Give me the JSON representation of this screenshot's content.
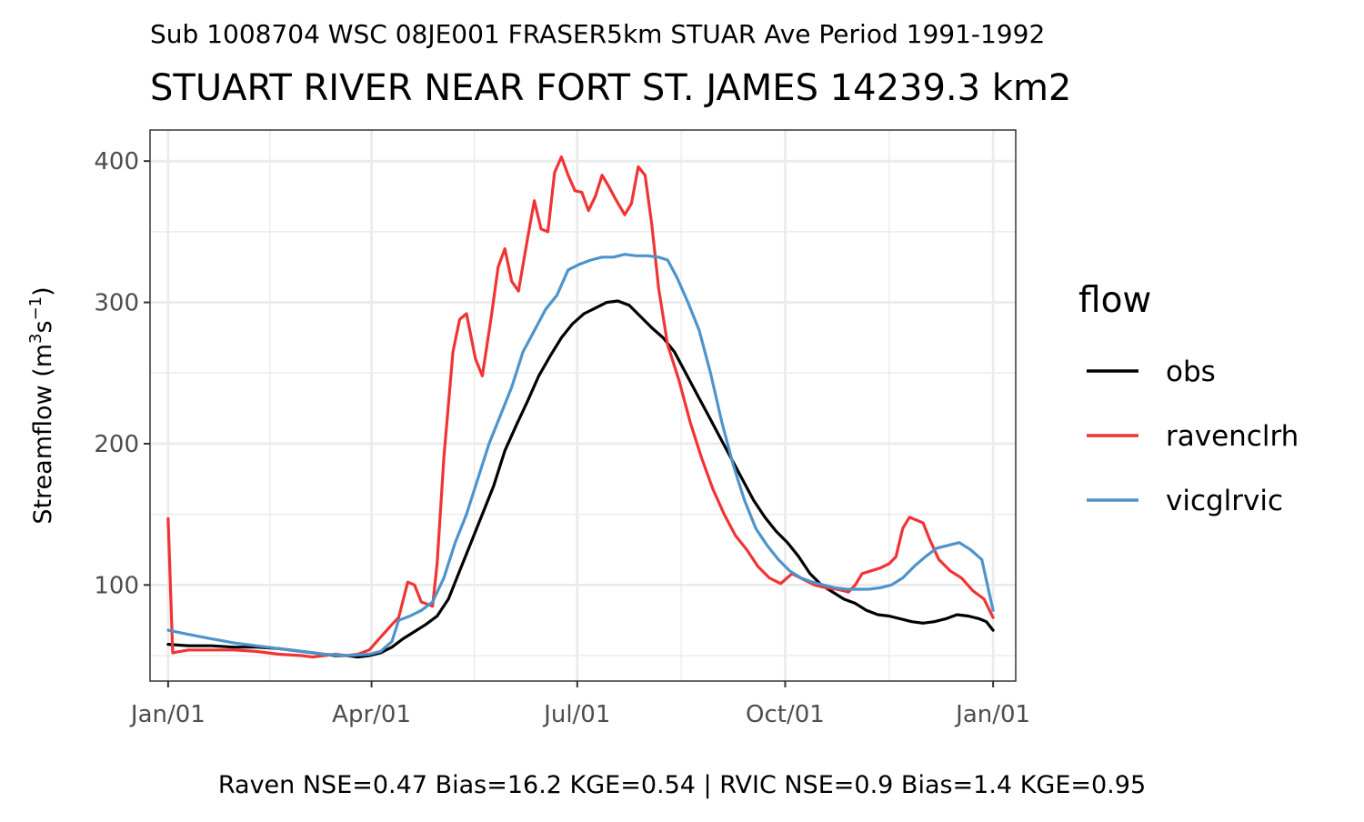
{
  "chart_data": {
    "type": "line",
    "subtitle": "Sub 1008704 WSC 08JE001 FRASER5km STUAR Ave Period 1991-1992",
    "title": "STUART RIVER NEAR FORT ST. JAMES 14239.3 km2",
    "xlabel": "",
    "ylabel": "Streamflow (m3s−1)",
    "ylabel_parts": {
      "prefix": "Streamflow (m",
      "sup1": "3",
      "mid": "s",
      "sup2": "−1",
      "suffix": ")"
    },
    "caption": "Raven NSE=0.47 Bias=16.2 KGE=0.54 | RVIC NSE=0.9 Bias=1.4 KGE=0.95",
    "x_unit": "day of year",
    "x_ticks": [
      {
        "label": "Jan/01",
        "value": 1
      },
      {
        "label": "Apr/01",
        "value": 91
      },
      {
        "label": "Jul/01",
        "value": 182
      },
      {
        "label": "Oct/01",
        "value": 274
      },
      {
        "label": "Jan/01",
        "value": 366
      }
    ],
    "xlim": [
      -7,
      376
    ],
    "y_ticks": [
      100,
      200,
      300,
      400
    ],
    "ylim": [
      32,
      422
    ],
    "grid": true,
    "legend": {
      "title": "flow",
      "position": "right"
    },
    "series": [
      {
        "name": "obs",
        "color": "#000000",
        "points": [
          [
            1,
            58
          ],
          [
            10,
            57
          ],
          [
            20,
            57
          ],
          [
            30,
            56
          ],
          [
            40,
            56
          ],
          [
            50,
            55
          ],
          [
            60,
            53
          ],
          [
            70,
            51
          ],
          [
            75,
            50
          ],
          [
            80,
            50
          ],
          [
            85,
            49
          ],
          [
            90,
            50
          ],
          [
            95,
            52
          ],
          [
            100,
            56
          ],
          [
            105,
            62
          ],
          [
            110,
            67
          ],
          [
            115,
            72
          ],
          [
            120,
            78
          ],
          [
            125,
            90
          ],
          [
            130,
            110
          ],
          [
            135,
            130
          ],
          [
            140,
            150
          ],
          [
            145,
            170
          ],
          [
            150,
            195
          ],
          [
            155,
            213
          ],
          [
            160,
            230
          ],
          [
            165,
            248
          ],
          [
            170,
            262
          ],
          [
            175,
            275
          ],
          [
            180,
            285
          ],
          [
            185,
            292
          ],
          [
            190,
            296
          ],
          [
            195,
            300
          ],
          [
            200,
            301
          ],
          [
            205,
            298
          ],
          [
            210,
            290
          ],
          [
            215,
            282
          ],
          [
            220,
            275
          ],
          [
            225,
            265
          ],
          [
            230,
            250
          ],
          [
            235,
            235
          ],
          [
            240,
            220
          ],
          [
            245,
            205
          ],
          [
            250,
            190
          ],
          [
            255,
            175
          ],
          [
            260,
            160
          ],
          [
            265,
            148
          ],
          [
            270,
            138
          ],
          [
            275,
            130
          ],
          [
            280,
            120
          ],
          [
            285,
            108
          ],
          [
            290,
            100
          ],
          [
            295,
            95
          ],
          [
            300,
            90
          ],
          [
            305,
            87
          ],
          [
            310,
            82
          ],
          [
            315,
            79
          ],
          [
            320,
            78
          ],
          [
            325,
            76
          ],
          [
            330,
            74
          ],
          [
            335,
            73
          ],
          [
            340,
            74
          ],
          [
            345,
            76
          ],
          [
            350,
            79
          ],
          [
            355,
            78
          ],
          [
            360,
            76
          ],
          [
            363,
            74
          ],
          [
            366,
            68
          ]
        ]
      },
      {
        "name": "ravenclrh",
        "color": "#f23333",
        "points": [
          [
            1,
            147
          ],
          [
            3,
            52
          ],
          [
            10,
            54
          ],
          [
            20,
            54
          ],
          [
            30,
            54
          ],
          [
            40,
            53
          ],
          [
            50,
            51
          ],
          [
            60,
            50
          ],
          [
            65,
            49
          ],
          [
            70,
            50
          ],
          [
            75,
            51
          ],
          [
            80,
            50
          ],
          [
            85,
            51
          ],
          [
            90,
            54
          ],
          [
            95,
            63
          ],
          [
            100,
            72
          ],
          [
            103,
            77
          ],
          [
            107,
            102
          ],
          [
            110,
            100
          ],
          [
            113,
            88
          ],
          [
            118,
            85
          ],
          [
            120,
            115
          ],
          [
            123,
            190
          ],
          [
            127,
            265
          ],
          [
            130,
            288
          ],
          [
            133,
            292
          ],
          [
            137,
            260
          ],
          [
            140,
            248
          ],
          [
            144,
            290
          ],
          [
            147,
            325
          ],
          [
            150,
            338
          ],
          [
            153,
            315
          ],
          [
            156,
            308
          ],
          [
            160,
            345
          ],
          [
            163,
            372
          ],
          [
            166,
            352
          ],
          [
            169,
            350
          ],
          [
            172,
            392
          ],
          [
            175,
            403
          ],
          [
            178,
            390
          ],
          [
            181,
            379
          ],
          [
            184,
            378
          ],
          [
            187,
            365
          ],
          [
            190,
            375
          ],
          [
            193,
            390
          ],
          [
            196,
            382
          ],
          [
            199,
            373
          ],
          [
            203,
            362
          ],
          [
            206,
            370
          ],
          [
            209,
            396
          ],
          [
            212,
            390
          ],
          [
            215,
            355
          ],
          [
            218,
            310
          ],
          [
            222,
            270
          ],
          [
            227,
            245
          ],
          [
            232,
            215
          ],
          [
            237,
            190
          ],
          [
            242,
            168
          ],
          [
            247,
            150
          ],
          [
            252,
            135
          ],
          [
            257,
            125
          ],
          [
            262,
            113
          ],
          [
            267,
            105
          ],
          [
            272,
            101
          ],
          [
            277,
            108
          ],
          [
            282,
            104
          ],
          [
            287,
            100
          ],
          [
            292,
            98
          ],
          [
            297,
            97
          ],
          [
            302,
            95
          ],
          [
            305,
            100
          ],
          [
            308,
            108
          ],
          [
            312,
            110
          ],
          [
            316,
            112
          ],
          [
            320,
            115
          ],
          [
            323,
            120
          ],
          [
            326,
            140
          ],
          [
            329,
            148
          ],
          [
            332,
            146
          ],
          [
            335,
            144
          ],
          [
            338,
            132
          ],
          [
            342,
            118
          ],
          [
            347,
            110
          ],
          [
            352,
            105
          ],
          [
            357,
            96
          ],
          [
            362,
            90
          ],
          [
            366,
            77
          ]
        ]
      },
      {
        "name": "vicglrvic",
        "color": "#4d94cc",
        "points": [
          [
            1,
            68
          ],
          [
            10,
            65
          ],
          [
            20,
            62
          ],
          [
            30,
            59
          ],
          [
            40,
            57
          ],
          [
            50,
            55
          ],
          [
            60,
            53
          ],
          [
            70,
            51
          ],
          [
            80,
            50
          ],
          [
            90,
            51
          ],
          [
            95,
            53
          ],
          [
            100,
            60
          ],
          [
            103,
            75
          ],
          [
            108,
            78
          ],
          [
            113,
            82
          ],
          [
            118,
            88
          ],
          [
            123,
            105
          ],
          [
            128,
            130
          ],
          [
            133,
            150
          ],
          [
            138,
            175
          ],
          [
            143,
            200
          ],
          [
            148,
            220
          ],
          [
            153,
            240
          ],
          [
            158,
            265
          ],
          [
            163,
            280
          ],
          [
            168,
            295
          ],
          [
            173,
            305
          ],
          [
            178,
            323
          ],
          [
            183,
            327
          ],
          [
            188,
            330
          ],
          [
            193,
            332
          ],
          [
            198,
            332
          ],
          [
            203,
            334
          ],
          [
            208,
            333
          ],
          [
            213,
            333
          ],
          [
            218,
            332
          ],
          [
            222,
            330
          ],
          [
            226,
            318
          ],
          [
            231,
            300
          ],
          [
            236,
            280
          ],
          [
            241,
            250
          ],
          [
            246,
            215
          ],
          [
            251,
            185
          ],
          [
            256,
            160
          ],
          [
            261,
            140
          ],
          [
            266,
            128
          ],
          [
            271,
            118
          ],
          [
            276,
            110
          ],
          [
            281,
            105
          ],
          [
            286,
            102
          ],
          [
            291,
            100
          ],
          [
            296,
            98
          ],
          [
            301,
            97
          ],
          [
            306,
            97
          ],
          [
            311,
            97
          ],
          [
            316,
            98
          ],
          [
            321,
            100
          ],
          [
            326,
            105
          ],
          [
            331,
            113
          ],
          [
            336,
            120
          ],
          [
            341,
            126
          ],
          [
            346,
            128
          ],
          [
            351,
            130
          ],
          [
            356,
            125
          ],
          [
            361,
            118
          ],
          [
            366,
            82
          ]
        ]
      }
    ]
  }
}
